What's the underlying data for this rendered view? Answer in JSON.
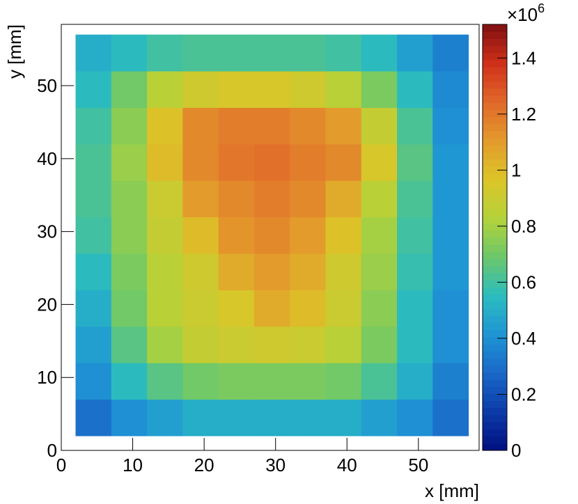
{
  "chart_data": {
    "type": "heatmap",
    "x_label": "x [mm]",
    "y_label": "y [mm]",
    "x_edges": [
      2,
      7,
      12,
      17,
      22,
      27,
      32,
      37,
      42,
      47,
      52,
      57
    ],
    "y_edges": [
      2,
      7,
      12,
      17,
      22,
      27,
      32,
      37,
      42,
      47,
      52,
      57
    ],
    "z": [
      [
        0.3,
        0.4,
        0.45,
        0.5,
        0.5,
        0.5,
        0.5,
        0.5,
        0.45,
        0.4,
        0.3
      ],
      [
        0.4,
        0.55,
        0.65,
        0.7,
        0.72,
        0.72,
        0.72,
        0.7,
        0.62,
        0.5,
        0.35
      ],
      [
        0.45,
        0.65,
        0.8,
        0.88,
        0.9,
        0.92,
        0.9,
        0.85,
        0.72,
        0.55,
        0.4
      ],
      [
        0.5,
        0.7,
        0.85,
        0.9,
        0.95,
        1.05,
        1.0,
        0.9,
        0.75,
        0.55,
        0.4
      ],
      [
        0.55,
        0.72,
        0.85,
        0.92,
        1.05,
        1.1,
        1.05,
        0.92,
        0.78,
        0.58,
        0.42
      ],
      [
        0.6,
        0.75,
        0.88,
        1.0,
        1.12,
        1.15,
        1.1,
        0.98,
        0.8,
        0.6,
        0.42
      ],
      [
        0.62,
        0.75,
        0.9,
        1.1,
        1.15,
        1.18,
        1.15,
        1.05,
        0.85,
        0.62,
        0.42
      ],
      [
        0.62,
        0.78,
        1.0,
        1.15,
        1.2,
        1.22,
        1.18,
        1.15,
        0.95,
        0.65,
        0.42
      ],
      [
        0.6,
        0.75,
        0.98,
        1.15,
        1.18,
        1.18,
        1.15,
        1.1,
        0.88,
        0.62,
        0.4
      ],
      [
        0.55,
        0.7,
        0.85,
        0.92,
        0.95,
        0.95,
        0.92,
        0.85,
        0.72,
        0.55,
        0.38
      ],
      [
        0.5,
        0.55,
        0.6,
        0.62,
        0.62,
        0.62,
        0.62,
        0.6,
        0.55,
        0.45,
        0.35
      ]
    ],
    "xlim": [
      0,
      58.5
    ],
    "ylim": [
      0,
      58.4
    ],
    "zlim": [
      0,
      1.52
    ],
    "xticks": [
      0,
      10,
      20,
      30,
      40,
      50
    ],
    "yticks": [
      0,
      10,
      20,
      30,
      40,
      50
    ],
    "zticks": [
      0,
      0.2,
      0.4,
      0.6,
      0.8,
      1,
      1.2,
      1.4
    ],
    "z_multiplier": {
      "base": "×10",
      "exponent": "6"
    },
    "palette": [
      "#00107f",
      "#0c3aa8",
      "#1a68c8",
      "#1f95d4",
      "#2bbcbf",
      "#6cc86a",
      "#b4d23a",
      "#dcc528",
      "#e39a2c",
      "#e1672a",
      "#d0301a",
      "#7f0f10"
    ]
  }
}
